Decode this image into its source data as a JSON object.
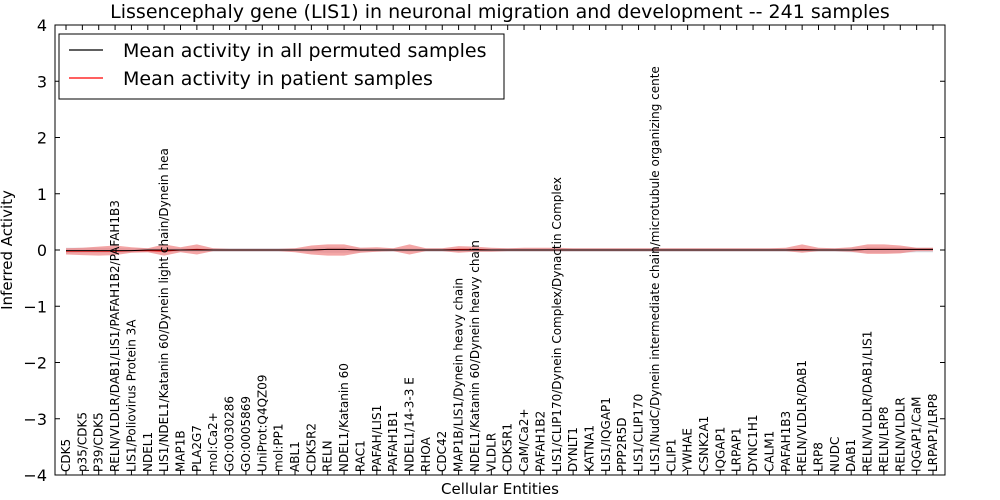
{
  "chart_data": {
    "type": "line",
    "title": "Lissencephaly gene (LIS1) in neuronal migration and development -- 241 samples",
    "xlabel": "Cellular Entities",
    "ylabel": "Inferred Activity",
    "ylim": [
      -4,
      4
    ],
    "yticks": [
      -4,
      -3,
      -2,
      -1,
      0,
      1,
      2,
      3,
      4
    ],
    "ytick_labels": [
      "−4",
      "−3",
      "−2",
      "−1",
      "0",
      "1",
      "2",
      "3",
      "4"
    ],
    "legend": {
      "placement": "top-left",
      "entries": [
        {
          "label": "Mean activity in all permuted samples",
          "color": "#000000"
        },
        {
          "label": "Mean activity in patient samples",
          "color": "#ff0000"
        }
      ]
    },
    "colors": {
      "permuted": "#000000",
      "patient": "#ff0000",
      "patient_band": "#f08080",
      "permuted_band": "#b0b0c0"
    },
    "categories": [
      "CDK5",
      "p35/CDK5",
      "P39/CDK5",
      "RELN/VLDLR/DAB1/LIS1/PAFAH1B2/PAFAH1B3",
      "LIS1/Poliovirus Protein 3A",
      "NDEL1",
      "LIS1/NDEL1/Katanin 60/Dynein light chain/Dynein hea",
      "MAP1B",
      "PLA2G7",
      "mol:Ca2+",
      "GO:0030286",
      "GO:0005869",
      "UniProt:Q4QZ09",
      "mol:PP1",
      "ABL1",
      "CDK5R2",
      "RELN",
      "NDEL1/Katanin 60",
      "RAC1",
      "PAFAH/LIS1",
      "PAFAH1B1",
      "NDEL1/14-3-3 E",
      "RHOA",
      "CDC42",
      "MAP1B/LIS1/Dynein heavy chain",
      "NDEL1/Katanin 60/Dynein heavy chain",
      "VLDLR",
      "CDK5R1",
      "CaM/Ca2+",
      "PAFAH1B2",
      "LIS1/CLIP170/Dynein Complex/Dynactin Complex",
      "DYNLT1",
      "KATNA1",
      "LIS1/IQGAP1",
      "PPP2R5D",
      "LIS1/CLIP170",
      "LIS1/NudC/Dynein intermediate chain/microtubule organizing cente",
      "CLIP1",
      "YWHAE",
      "CSNK2A1",
      "IQGAP1",
      "LRPAP1",
      "DYNC1H1",
      "CALM1",
      "PAFAH1B3",
      "RELN/VLDLR/DAB1",
      "LRP8",
      "NUDC",
      "DAB1",
      "RELN/VLDLR/DAB1/LIS1",
      "RELN/LRP8",
      "RELN/VLDLR",
      "IQGAP1/CaM",
      "LRPAP1/LRP8"
    ],
    "series": [
      {
        "name": "Mean activity in all permuted samples",
        "values": [
          -0.01,
          -0.01,
          -0.01,
          -0.01,
          -0.01,
          0,
          0,
          0,
          0,
          0,
          0,
          0,
          0,
          0,
          0,
          0,
          0.01,
          0.01,
          0,
          0,
          0,
          0,
          0,
          0,
          0,
          0,
          0,
          0,
          0,
          0,
          0,
          0,
          0,
          0,
          0,
          0,
          0,
          0,
          0,
          0,
          0,
          0,
          0,
          0,
          0,
          0,
          0,
          0,
          0,
          0.01,
          0.01,
          0.01,
          0.01,
          0.01
        ],
        "lower": [
          -0.06,
          -0.05,
          -0.05,
          -0.05,
          -0.04,
          -0.04,
          -0.04,
          -0.03,
          -0.03,
          -0.03,
          -0.03,
          -0.03,
          -0.03,
          -0.03,
          -0.03,
          -0.04,
          -0.05,
          -0.05,
          -0.04,
          -0.03,
          -0.03,
          -0.03,
          -0.03,
          -0.03,
          -0.03,
          -0.03,
          -0.03,
          -0.03,
          -0.03,
          -0.03,
          -0.03,
          -0.03,
          -0.03,
          -0.03,
          -0.03,
          -0.03,
          -0.03,
          -0.03,
          -0.03,
          -0.03,
          -0.03,
          -0.03,
          -0.03,
          -0.03,
          -0.03,
          -0.03,
          -0.03,
          -0.03,
          -0.04,
          -0.05,
          -0.05,
          -0.05,
          -0.04,
          -0.04
        ],
        "upper": [
          0.04,
          0.04,
          0.04,
          0.04,
          0.03,
          0.03,
          0.03,
          0.03,
          0.03,
          0.03,
          0.03,
          0.03,
          0.03,
          0.03,
          0.03,
          0.04,
          0.05,
          0.05,
          0.04,
          0.03,
          0.03,
          0.03,
          0.03,
          0.03,
          0.03,
          0.03,
          0.03,
          0.03,
          0.03,
          0.03,
          0.03,
          0.03,
          0.03,
          0.03,
          0.03,
          0.03,
          0.03,
          0.03,
          0.03,
          0.03,
          0.03,
          0.03,
          0.03,
          0.03,
          0.03,
          0.03,
          0.03,
          0.03,
          0.04,
          0.05,
          0.05,
          0.05,
          0.04,
          0.04
        ]
      },
      {
        "name": "Mean activity in patient samples",
        "values": [
          -0.02,
          -0.02,
          -0.02,
          -0.02,
          -0.01,
          -0.01,
          -0.02,
          0,
          0.01,
          0,
          0,
          0,
          0,
          0,
          0,
          0,
          0.01,
          0.01,
          0,
          0,
          0,
          0,
          0,
          0,
          0.01,
          0.01,
          0,
          0,
          0,
          0,
          0,
          0,
          0,
          0,
          0,
          0,
          0,
          0,
          0,
          0,
          0,
          0,
          0,
          0,
          0,
          0.01,
          0,
          0,
          0,
          0.01,
          0.01,
          0.01,
          0.01,
          0.01
        ],
        "lower": [
          -0.08,
          -0.09,
          -0.1,
          -0.09,
          -0.05,
          -0.04,
          -0.1,
          -0.04,
          -0.08,
          -0.02,
          -0.02,
          -0.02,
          -0.02,
          -0.02,
          -0.04,
          -0.08,
          -0.1,
          -0.1,
          -0.05,
          -0.03,
          -0.02,
          -0.08,
          -0.02,
          -0.02,
          -0.05,
          -0.03,
          -0.03,
          -0.02,
          -0.02,
          -0.02,
          -0.02,
          -0.02,
          -0.02,
          -0.02,
          -0.02,
          -0.02,
          -0.02,
          -0.02,
          -0.02,
          -0.02,
          -0.02,
          -0.02,
          -0.02,
          -0.02,
          -0.02,
          -0.05,
          -0.02,
          -0.02,
          -0.03,
          -0.07,
          -0.07,
          -0.06,
          -0.02,
          -0.02
        ],
        "upper": [
          0.03,
          0.04,
          0.06,
          0.08,
          0.05,
          0.03,
          0.1,
          0.05,
          0.1,
          0.03,
          0.02,
          0.02,
          0.02,
          0.02,
          0.03,
          0.08,
          0.1,
          0.1,
          0.04,
          0.05,
          0.03,
          0.1,
          0.03,
          0.03,
          0.07,
          0.06,
          0.04,
          0.03,
          0.04,
          0.04,
          0.04,
          0.03,
          0.03,
          0.03,
          0.03,
          0.03,
          0.03,
          0.03,
          0.03,
          0.03,
          0.03,
          0.03,
          0.03,
          0.03,
          0.04,
          0.1,
          0.04,
          0.03,
          0.05,
          0.1,
          0.1,
          0.08,
          0.04,
          0.04
        ]
      }
    ]
  }
}
